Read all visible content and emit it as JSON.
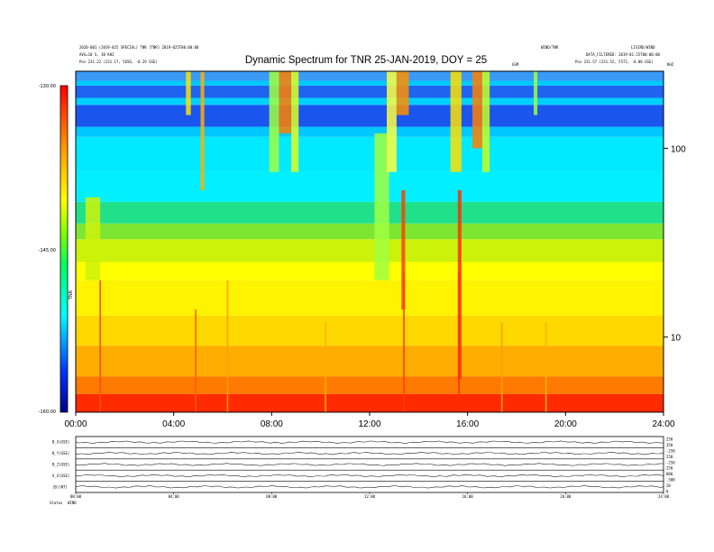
{
  "header": {
    "left_line1": "2020-001 (2019-025 SPECIAL) TNR [TNR] 2019-025T00:00:00",
    "left_line2": "AVG=10 S, 30 KHZ",
    "left_line3": "Pos  231.22 (231.17, 5656, -0.29 GSE)",
    "center_small": "GSM",
    "right_line1": "WIND/TNR",
    "right_line2": "LISIRD/WIND",
    "right_line3": "DATA_FILTERED: 2019-01-25T00:00:00",
    "right_line4": "Pos  231.57 (231.52, 5572, -0.08 GSE)",
    "right_corner": "KHZ"
  },
  "chart_data": {
    "type": "heatmap",
    "title": "Dynamic Spectrum for TNR 25-JAN-2019, DOY = 25",
    "xlabel": "",
    "ylabel": "",
    "x_range_hours": [
      0,
      24
    ],
    "x_ticks": [
      "00:00",
      "04:00",
      "08:00",
      "12:00",
      "16:00",
      "20:00",
      "24:00"
    ],
    "y_scale": "log",
    "y_range_khz": [
      4,
      256
    ],
    "y_ticks": [
      {
        "value": 100,
        "label": "100"
      },
      {
        "value": 10,
        "label": "10"
      }
    ],
    "colorbar": {
      "range_db": [
        -160,
        -130
      ],
      "labels": [
        "-130.00",
        "-145.00",
        "-160.00"
      ],
      "side_label": "TNR"
    },
    "bands": [
      {
        "from_khz": 4.0,
        "to_khz": 5.0,
        "color": "#ff2a00"
      },
      {
        "from_khz": 5.0,
        "to_khz": 6.2,
        "color": "#ff7a00"
      },
      {
        "from_khz": 6.2,
        "to_khz": 9.0,
        "color": "#ffae00"
      },
      {
        "from_khz": 9.0,
        "to_khz": 13.0,
        "color": "#ffd800"
      },
      {
        "from_khz": 13.0,
        "to_khz": 20.0,
        "color": "#fff300"
      },
      {
        "from_khz": 20.0,
        "to_khz": 25.0,
        "color": "#ffff00"
      },
      {
        "from_khz": 25.0,
        "to_khz": 33.0,
        "color": "#ccf20a"
      },
      {
        "from_khz": 33.0,
        "to_khz": 40.0,
        "color": "#7de632"
      },
      {
        "from_khz": 40.0,
        "to_khz": 52.0,
        "color": "#20e08a"
      },
      {
        "from_khz": 52.0,
        "to_khz": 75.0,
        "color": "#00f0ff"
      },
      {
        "from_khz": 75.0,
        "to_khz": 115.0,
        "color": "#00eaff"
      },
      {
        "from_khz": 115.0,
        "to_khz": 130.0,
        "color": "#00c8ff"
      },
      {
        "from_khz": 130.0,
        "to_khz": 170.0,
        "color": "#1a55ee"
      },
      {
        "from_khz": 170.0,
        "to_khz": 185.0,
        "color": "#00d0ff"
      },
      {
        "from_khz": 185.0,
        "to_khz": 215.0,
        "color": "#1e64f0"
      },
      {
        "from_khz": 215.0,
        "to_khz": 228.0,
        "color": "#00c8ff"
      },
      {
        "from_khz": 228.0,
        "to_khz": 256.0,
        "color": "#3a9af5"
      }
    ],
    "bursts": [
      {
        "start_h": 0.4,
        "end_h": 1.0,
        "from_khz": 20,
        "to_khz": 55,
        "color": "#ccf20a"
      },
      {
        "start_h": 4.5,
        "end_h": 4.7,
        "from_khz": 150,
        "to_khz": 256,
        "color": "#ffe000"
      },
      {
        "start_h": 5.1,
        "end_h": 5.25,
        "from_khz": 60,
        "to_khz": 256,
        "color": "#ffb000"
      },
      {
        "start_h": 7.9,
        "end_h": 8.3,
        "from_khz": 75,
        "to_khz": 256,
        "color": "#a0ff40"
      },
      {
        "start_h": 8.3,
        "end_h": 8.8,
        "from_khz": 120,
        "to_khz": 256,
        "color": "#ff8000"
      },
      {
        "start_h": 8.8,
        "end_h": 9.1,
        "from_khz": 75,
        "to_khz": 256,
        "color": "#e0ff20"
      },
      {
        "start_h": 12.2,
        "end_h": 12.8,
        "from_khz": 20,
        "to_khz": 120,
        "color": "#a0ff40"
      },
      {
        "start_h": 12.7,
        "end_h": 13.1,
        "from_khz": 75,
        "to_khz": 256,
        "color": "#ffff40"
      },
      {
        "start_h": 13.1,
        "end_h": 13.6,
        "from_khz": 150,
        "to_khz": 256,
        "color": "#ff9000"
      },
      {
        "start_h": 13.3,
        "end_h": 13.45,
        "from_khz": 14,
        "to_khz": 60,
        "color": "#ff4000"
      },
      {
        "start_h": 15.3,
        "end_h": 15.75,
        "from_khz": 75,
        "to_khz": 256,
        "color": "#ffe000"
      },
      {
        "start_h": 15.6,
        "end_h": 15.75,
        "from_khz": 6,
        "to_khz": 60,
        "color": "#ff3000"
      },
      {
        "start_h": 16.2,
        "end_h": 16.6,
        "from_khz": 100,
        "to_khz": 256,
        "color": "#ff8000"
      },
      {
        "start_h": 16.6,
        "end_h": 16.9,
        "from_khz": 75,
        "to_khz": 256,
        "color": "#c8ff20"
      },
      {
        "start_h": 18.7,
        "end_h": 18.85,
        "from_khz": 150,
        "to_khz": 256,
        "color": "#a0ff40"
      }
    ],
    "streaks": [
      {
        "at_h": 1.0,
        "from_khz": 4,
        "to_khz": 20,
        "color": "#ff5000"
      },
      {
        "at_h": 4.9,
        "from_khz": 4,
        "to_khz": 14,
        "color": "#ff6000"
      },
      {
        "at_h": 6.2,
        "from_khz": 4,
        "to_khz": 20,
        "color": "#ffa000"
      },
      {
        "at_h": 10.2,
        "from_khz": 4,
        "to_khz": 12,
        "color": "#ffb000"
      },
      {
        "at_h": 13.4,
        "from_khz": 4,
        "to_khz": 22,
        "color": "#ff4000"
      },
      {
        "at_h": 15.65,
        "from_khz": 4,
        "to_khz": 22,
        "color": "#ff3000"
      },
      {
        "at_h": 17.4,
        "from_khz": 4,
        "to_khz": 12,
        "color": "#ffa000"
      },
      {
        "at_h": 19.2,
        "from_khz": 4,
        "to_khz": 12,
        "color": "#ffb000"
      }
    ]
  },
  "panels": {
    "labels": [
      "B_X(GSE)",
      "B_Y(GSE)",
      "B_Z(GSE)",
      "V_X(GSE)",
      "|B|(NT)"
    ],
    "right_labels": [
      "250",
      "350",
      "-250",
      "250",
      "-250",
      "250",
      "800",
      "-500",
      "20",
      "0"
    ],
    "x_ticks": [
      "00:00",
      "04:00",
      "08:00",
      "12:00",
      "16:00",
      "20:00",
      "24:00"
    ],
    "status_label": "Status",
    "status_value": "WIND"
  }
}
